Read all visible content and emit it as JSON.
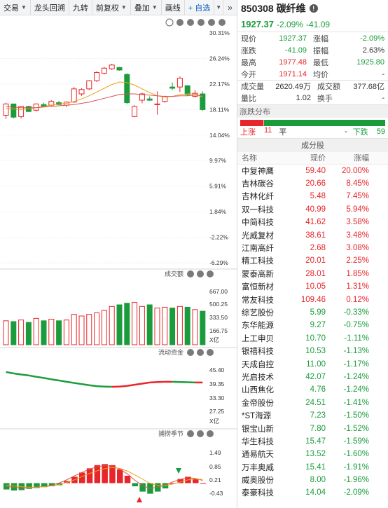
{
  "toolbar": {
    "buttons": [
      {
        "label": "交易",
        "caret": true
      },
      {
        "label": "龙头回溯",
        "caret": false
      },
      {
        "label": "九转",
        "caret": false
      },
      {
        "label": "前复权",
        "caret": true
      },
      {
        "label": "叠加",
        "caret": true
      },
      {
        "label": "画线",
        "caret": false
      }
    ],
    "add_label": "+ 自选",
    "expand_label": "»"
  },
  "chart": {
    "price_axis": [
      "30.31%",
      "26.24%",
      "22.17%",
      "18.11%",
      "14.04%",
      "9.97%",
      "5.91%",
      "1.84%",
      "-2.22%",
      "-6.29%"
    ],
    "volume_title": "成交额",
    "volume_axis": [
      "667.00",
      "500.25",
      "333.50",
      "166.75",
      "X亿"
    ],
    "flow_title": "流动资金",
    "flow_axis": [
      "45.40",
      "39.35",
      "33.30",
      "27.25",
      "X亿"
    ],
    "macd_title": "捕捞季节",
    "macd_axis": [
      "1.49",
      "0.85",
      "0.21",
      "-0.43"
    ],
    "panel_icons": {
      "settings": "⚙",
      "help": "?",
      "close": "×"
    },
    "candles": [
      {
        "o": 17.2,
        "h": 19.2,
        "l": 16.6,
        "c": 19.0
      },
      {
        "o": 19.0,
        "h": 19.0,
        "l": 16.7,
        "c": 16.9
      },
      {
        "o": 17.0,
        "h": 18.7,
        "l": 16.7,
        "c": 18.6
      },
      {
        "o": 18.6,
        "h": 18.7,
        "l": 17.7,
        "c": 17.8
      },
      {
        "o": 18.0,
        "h": 19.1,
        "l": 17.8,
        "c": 19.0
      },
      {
        "o": 18.9,
        "h": 19.2,
        "l": 18.5,
        "c": 18.6
      },
      {
        "o": 18.8,
        "h": 19.6,
        "l": 18.6,
        "c": 19.4
      },
      {
        "o": 19.2,
        "h": 19.5,
        "l": 18.8,
        "c": 18.9
      },
      {
        "o": 18.8,
        "h": 19.4,
        "l": 18.5,
        "c": 19.3
      },
      {
        "o": 19.3,
        "h": 21.7,
        "l": 19.2,
        "c": 21.4
      },
      {
        "o": 20.6,
        "h": 21.5,
        "l": 20.3,
        "c": 21.3
      },
      {
        "o": 21.4,
        "h": 22.8,
        "l": 21.2,
        "c": 22.7
      },
      {
        "o": 22.7,
        "h": 24.2,
        "l": 22.5,
        "c": 24.0
      },
      {
        "o": 23.9,
        "h": 24.9,
        "l": 23.7,
        "c": 24.7
      },
      {
        "o": 24.6,
        "h": 25.4,
        "l": 24.4,
        "c": 25.2
      },
      {
        "o": 24.8,
        "h": 24.9,
        "l": 24.3,
        "c": 24.4
      },
      {
        "o": 23.7,
        "h": 23.9,
        "l": 19.0,
        "c": 19.2
      },
      {
        "o": 17.0,
        "h": 18.8,
        "l": 16.9,
        "c": 18.6
      },
      {
        "o": 19.6,
        "h": 20.8,
        "l": 19.1,
        "c": 20.6
      },
      {
        "o": 19.8,
        "h": 20.2,
        "l": 19.5,
        "c": 19.6
      },
      {
        "o": 18.9,
        "h": 21.0,
        "l": 17.3,
        "c": 19.0
      },
      {
        "o": 19.4,
        "h": 20.3,
        "l": 19.2,
        "c": 20.2
      },
      {
        "o": 21.7,
        "h": 22.4,
        "l": 21.2,
        "c": 21.5
      },
      {
        "o": 21.7,
        "h": 23.4,
        "l": 20.9,
        "c": 23.1
      },
      {
        "o": 21.9,
        "h": 22.0,
        "l": 20.3,
        "c": 20.5
      },
      {
        "o": 20.2,
        "h": 21.2,
        "l": 20.0,
        "c": 20.7
      },
      {
        "o": 20.6,
        "h": 21.0,
        "l": 17.9,
        "c": 18.1
      }
    ],
    "ma_fast": [
      18.3,
      18.2,
      18.1,
      18.2,
      18.4,
      18.6,
      18.8,
      19.0,
      19.1,
      19.4,
      19.8,
      20.3,
      20.9,
      21.5,
      22.1,
      22.5,
      22.4,
      22.0,
      21.4,
      20.8,
      20.3,
      20.1,
      20.2,
      20.5,
      20.6,
      20.6,
      20.1
    ],
    "ma_slow": [
      18.6,
      18.5,
      18.4,
      18.4,
      18.4,
      18.5,
      18.6,
      18.7,
      18.8,
      18.9,
      19.1,
      19.3,
      19.6,
      19.9,
      20.2,
      20.5,
      20.6,
      20.6,
      20.5,
      20.4,
      20.3,
      20.2,
      20.2,
      20.3,
      20.3,
      20.4,
      20.3
    ],
    "volumes": [
      300,
      290,
      310,
      280,
      330,
      300,
      320,
      300,
      310,
      380,
      360,
      380,
      400,
      430,
      480,
      500,
      520,
      530,
      480,
      500,
      460,
      470,
      460,
      480,
      470,
      440,
      420
    ],
    "flow": [
      44.5,
      43.9,
      43.4,
      43.0,
      42.4,
      41.9,
      41.3,
      40.8,
      40.2,
      39.7,
      39.2,
      38.7,
      38.3,
      38.1,
      38.0,
      38.1,
      38.4,
      38.9,
      39.4,
      39.9,
      40.1,
      40.2,
      40.2,
      40.1,
      40.0,
      39.9,
      39.9
    ],
    "macd_bars": [
      -0.25,
      -0.3,
      -0.28,
      -0.22,
      -0.18,
      -0.14,
      -0.1,
      -0.05,
      0.15,
      0.35,
      0.55,
      0.75,
      0.9,
      0.95,
      0.9,
      0.7,
      0.4,
      -0.1,
      -0.35,
      -0.45,
      -0.35,
      -0.2,
      0.05,
      0.25,
      0.35,
      0.25,
      0.05
    ],
    "macd_line": [
      -0.1,
      -0.15,
      -0.18,
      -0.17,
      -0.14,
      -0.1,
      -0.05,
      0.05,
      0.2,
      0.38,
      0.55,
      0.7,
      0.82,
      0.88,
      0.85,
      0.72,
      0.5,
      0.2,
      -0.05,
      -0.2,
      -0.15,
      -0.05,
      0.1,
      0.22,
      0.3,
      0.28,
      0.18
    ],
    "macd_signal": [
      -0.05,
      -0.08,
      -0.12,
      -0.14,
      -0.14,
      -0.12,
      -0.08,
      -0.02,
      0.08,
      0.2,
      0.35,
      0.5,
      0.63,
      0.73,
      0.78,
      0.75,
      0.63,
      0.45,
      0.25,
      0.05,
      -0.05,
      -0.07,
      0.0,
      0.1,
      0.2,
      0.25,
      0.22
    ]
  },
  "header": {
    "code_name": "850308 碳纤维",
    "price": "1927.37",
    "change_pct": "-2.09%",
    "change": "-41.09"
  },
  "quote": {
    "rows": [
      {
        "k1": "现价",
        "v1": "1927.37",
        "c1": "green",
        "k2": "涨幅",
        "v2": "-2.09%",
        "c2": "green"
      },
      {
        "k1": "涨跌",
        "v1": "-41.09",
        "c1": "green",
        "k2": "振幅",
        "v2": "2.63%",
        "c2": "black"
      },
      {
        "k1": "最高",
        "v1": "1977.48",
        "c1": "red",
        "k2": "最低",
        "v2": "1925.80",
        "c2": "green"
      },
      {
        "k1": "今开",
        "v1": "1971.14",
        "c1": "red",
        "k2": "均价",
        "v2": "-",
        "c2": "black"
      }
    ],
    "rows2": [
      {
        "k1": "成交量",
        "v1": "2620.49万",
        "k2": "成交额",
        "v2": "377.68亿"
      },
      {
        "k1": "量比",
        "v1": "1.02",
        "k2": "换手",
        "v2": "-"
      }
    ]
  },
  "distribution": {
    "title": "涨跌分布",
    "up_label": "上涨",
    "up_count": "11",
    "flat_label": "平",
    "flat_count": "-",
    "down_label": "下跌",
    "down_count": "59",
    "up_frac": 0.157,
    "flat_frac": 0.005,
    "down_frac": 0.838
  },
  "components": {
    "title": "成分股",
    "col_name": "名称",
    "col_price": "现价",
    "col_chg": "涨幅",
    "rows": [
      {
        "name": "中复神鹰",
        "price": "59.40",
        "chg": "20.00%",
        "dir": "red"
      },
      {
        "name": "吉林碳谷",
        "price": "20.66",
        "chg": "8.45%",
        "dir": "red"
      },
      {
        "name": "吉林化纤",
        "price": "5.48",
        "chg": "7.45%",
        "dir": "red"
      },
      {
        "name": "双一科技",
        "price": "40.99",
        "chg": "5.94%",
        "dir": "red"
      },
      {
        "name": "中简科技",
        "price": "41.62",
        "chg": "3.58%",
        "dir": "red"
      },
      {
        "name": "光威复材",
        "price": "38.61",
        "chg": "3.48%",
        "dir": "red"
      },
      {
        "name": "江南高纤",
        "price": "2.68",
        "chg": "3.08%",
        "dir": "red"
      },
      {
        "name": "精工科技",
        "price": "20.01",
        "chg": "2.25%",
        "dir": "red"
      },
      {
        "name": "蒙泰高新",
        "price": "28.01",
        "chg": "1.85%",
        "dir": "red"
      },
      {
        "name": "富恒新材",
        "price": "10.05",
        "chg": "1.31%",
        "dir": "red"
      },
      {
        "name": "常友科技",
        "price": "109.46",
        "chg": "0.12%",
        "dir": "red"
      },
      {
        "name": "综艺股份",
        "price": "5.99",
        "chg": "-0.33%",
        "dir": "green"
      },
      {
        "name": "东华能源",
        "price": "9.27",
        "chg": "-0.75%",
        "dir": "green"
      },
      {
        "name": "上工申贝",
        "price": "10.70",
        "chg": "-1.11%",
        "dir": "green"
      },
      {
        "name": "银禧科技",
        "price": "10.53",
        "chg": "-1.13%",
        "dir": "green"
      },
      {
        "name": "天成自控",
        "price": "11.00",
        "chg": "-1.17%",
        "dir": "green"
      },
      {
        "name": "光启技术",
        "price": "42.07",
        "chg": "-1.24%",
        "dir": "green"
      },
      {
        "name": "山西焦化",
        "price": "4.76",
        "chg": "-1.24%",
        "dir": "green"
      },
      {
        "name": "金帝股份",
        "price": "24.51",
        "chg": "-1.41%",
        "dir": "green"
      },
      {
        "name": "*ST海源",
        "price": "7.23",
        "chg": "-1.50%",
        "dir": "green"
      },
      {
        "name": "银宝山新",
        "price": "7.80",
        "chg": "-1.52%",
        "dir": "green"
      },
      {
        "name": "华生科技",
        "price": "15.47",
        "chg": "-1.59%",
        "dir": "green"
      },
      {
        "name": "通易航天",
        "price": "13.52",
        "chg": "-1.60%",
        "dir": "green"
      },
      {
        "name": "万丰奥威",
        "price": "15.41",
        "chg": "-1.91%",
        "dir": "green",
        "name_color": "blue"
      },
      {
        "name": "威奥股份",
        "price": "8.00",
        "chg": "-1.96%",
        "dir": "green"
      },
      {
        "name": "泰豪科技",
        "price": "14.04",
        "chg": "-2.09%",
        "dir": "green"
      }
    ]
  },
  "colors": {
    "up": "#e8252a",
    "down": "#1a9c3c",
    "ma_fast": "#e8a21b",
    "ma_slow": "#d9534f",
    "link": "#1565c0"
  }
}
